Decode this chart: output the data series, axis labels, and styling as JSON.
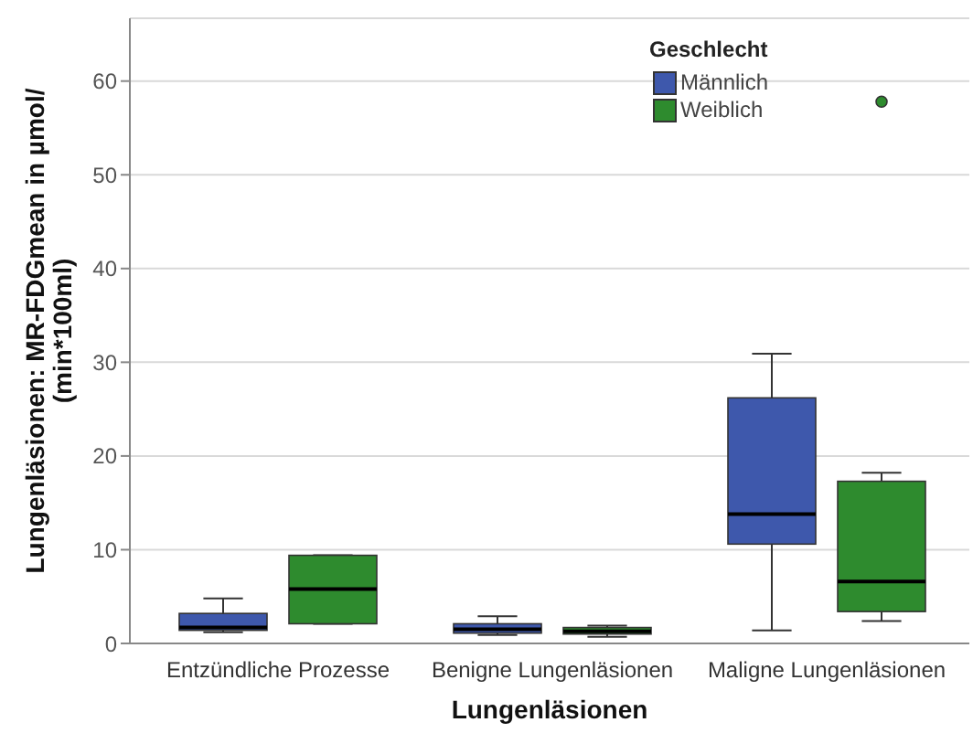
{
  "chart_data": {
    "type": "box",
    "xlabel": "Lungenläsionen",
    "ylabel": "Lungenläsionen: MR-FDGmean in µmol/\n(min*100ml)",
    "legend_title": "Geschlecht",
    "categories": [
      "Entzündliche Prozesse",
      "Benigne Lungenläsionen",
      "Maligne Lungenläsionen"
    ],
    "series": [
      {
        "name": "Männlich",
        "color": "#3e58ac",
        "boxes": [
          {
            "low": 1.2,
            "q1": 1.4,
            "median": 1.7,
            "q3": 3.2,
            "high": 4.8
          },
          {
            "low": 0.9,
            "q1": 1.1,
            "median": 1.5,
            "q3": 2.1,
            "high": 2.9
          },
          {
            "low": 1.4,
            "q1": 10.6,
            "median": 13.8,
            "q3": 26.2,
            "high": 30.9
          }
        ]
      },
      {
        "name": "Weiblich",
        "color": "#2e8b2e",
        "boxes": [
          {
            "low": 2.1,
            "q1": 2.1,
            "median": 5.8,
            "q3": 9.4,
            "high": 9.4
          },
          {
            "low": 0.7,
            "q1": 1.0,
            "median": 1.3,
            "q3": 1.7,
            "high": 1.9
          },
          {
            "low": 2.4,
            "q1": 3.4,
            "median": 6.6,
            "q3": 17.3,
            "high": 18.2,
            "outliers": [
              57.8
            ]
          }
        ]
      }
    ],
    "ylim": [
      0,
      66.7
    ],
    "yticks": [
      0,
      10,
      20,
      30,
      40,
      50,
      60
    ],
    "grid": "y",
    "legend": "top right"
  }
}
